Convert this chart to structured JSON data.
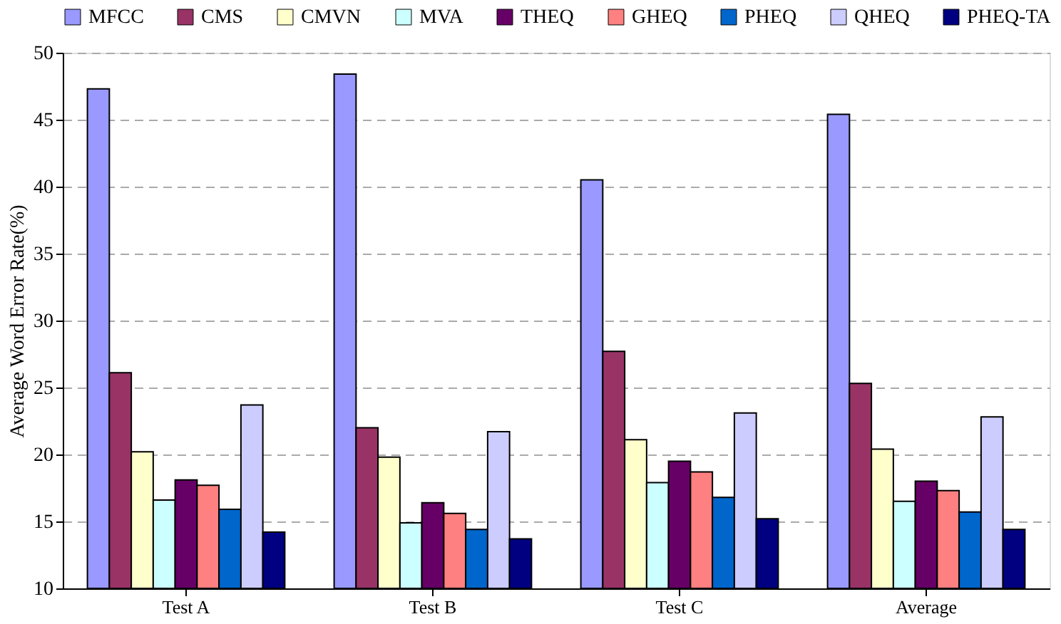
{
  "chart_data": {
    "type": "bar",
    "ylabel": "Average Word Error Rate(%)",
    "categories": [
      "Test A",
      "Test B",
      "Test C",
      "Average"
    ],
    "series": [
      {
        "name": "MFCC",
        "color": "#9999ff",
        "values": [
          47.3,
          48.4,
          40.5,
          45.4
        ]
      },
      {
        "name": "CMS",
        "color": "#993366",
        "values": [
          26.1,
          22.0,
          27.7,
          25.3
        ]
      },
      {
        "name": "CMVN",
        "color": "#ffffcc",
        "values": [
          20.2,
          19.8,
          21.1,
          20.4
        ]
      },
      {
        "name": "MVA",
        "color": "#ccffff",
        "values": [
          16.6,
          14.9,
          17.9,
          16.5
        ]
      },
      {
        "name": "THEQ",
        "color": "#660066",
        "values": [
          18.1,
          16.4,
          19.5,
          18.0
        ]
      },
      {
        "name": "GHEQ",
        "color": "#ff8080",
        "values": [
          17.7,
          15.6,
          18.7,
          17.3
        ]
      },
      {
        "name": "PHEQ",
        "color": "#0066cc",
        "values": [
          15.9,
          14.4,
          16.8,
          15.7
        ]
      },
      {
        "name": "QHEQ",
        "color": "#ccccff",
        "values": [
          23.7,
          21.7,
          23.1,
          22.8
        ]
      },
      {
        "name": "PHEQ-TA",
        "color": "#000080",
        "values": [
          14.2,
          13.7,
          15.2,
          14.4
        ]
      }
    ],
    "ylim": [
      10,
      50
    ],
    "yticks": [
      10,
      15,
      20,
      25,
      30,
      35,
      40,
      45,
      50
    ],
    "grid": "y",
    "legend": "top"
  }
}
